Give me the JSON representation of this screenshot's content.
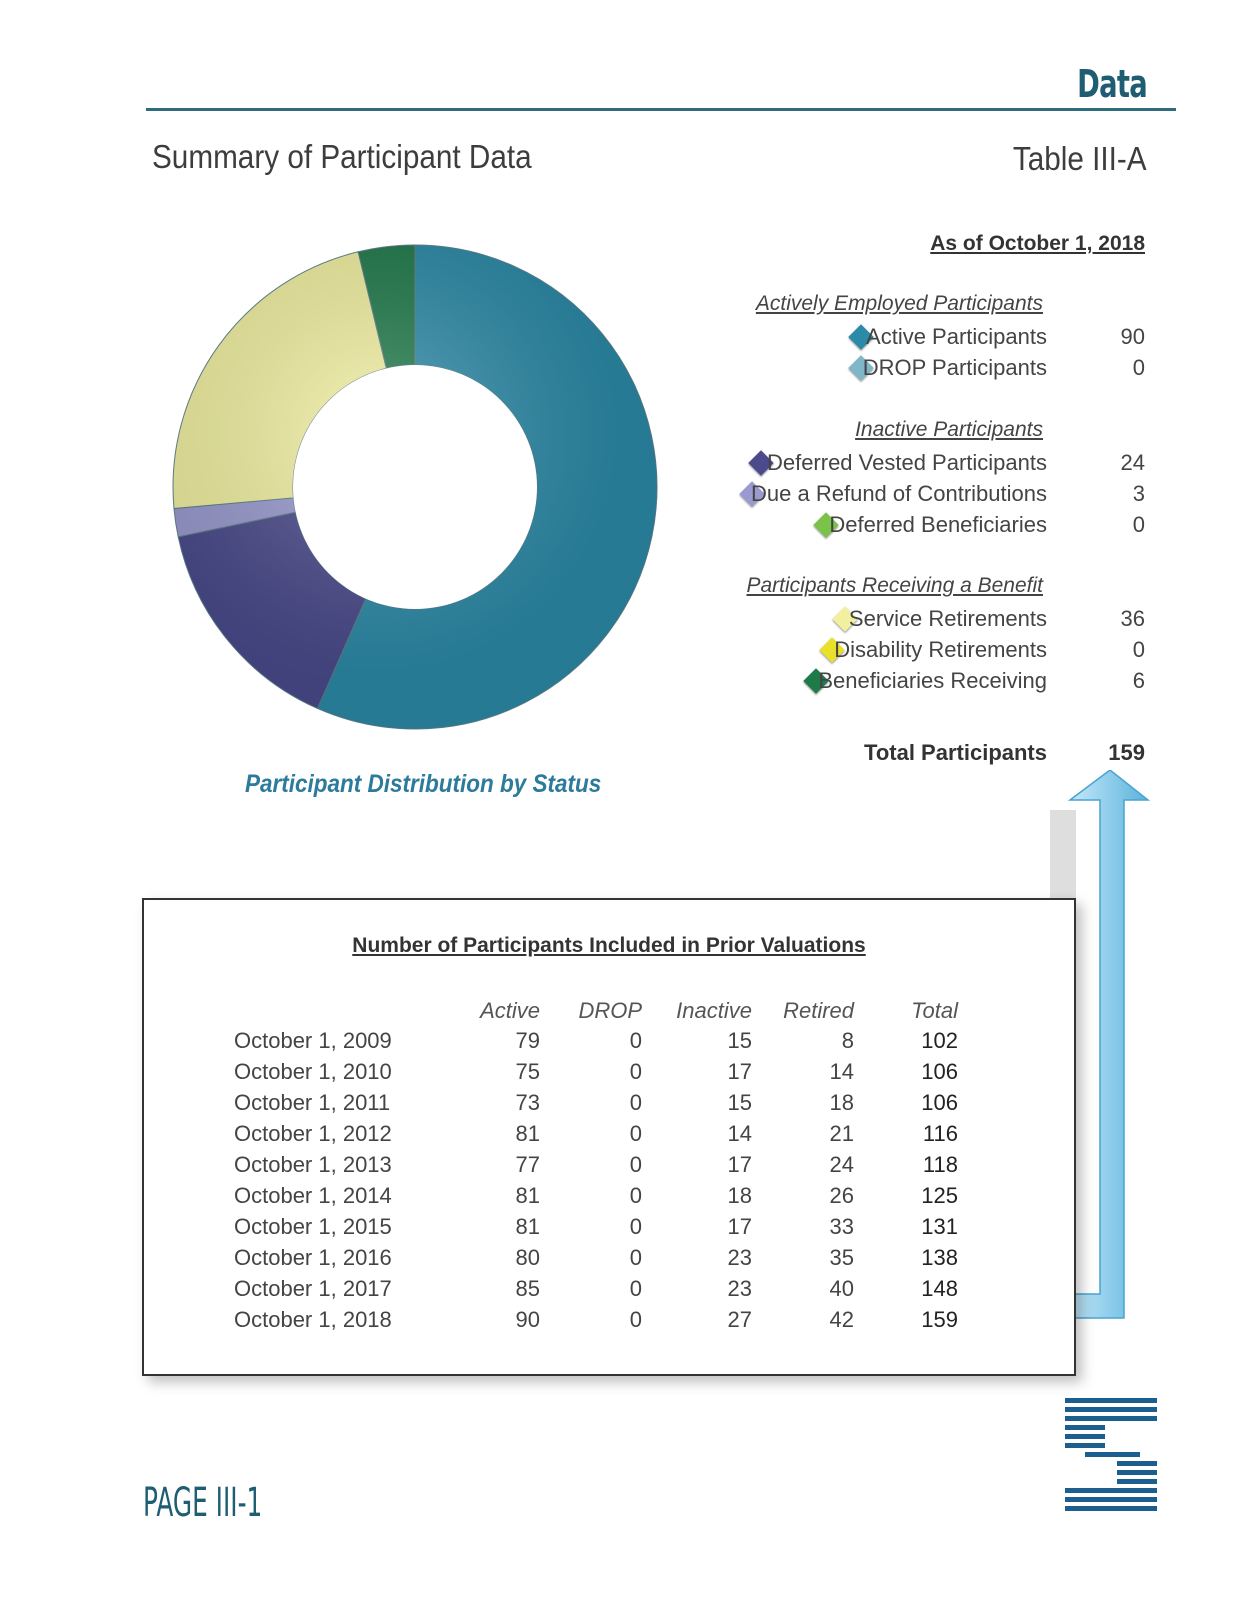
{
  "header": {
    "section": "Data",
    "title": "Summary of Participant Data",
    "table_id": "Table III-A"
  },
  "summary": {
    "as_of": "As of October 1, 2018",
    "groups": [
      {
        "heading": "Actively Employed Participants",
        "items": [
          {
            "label": "Active Participants",
            "value": "90",
            "color": "#2b8aa8"
          },
          {
            "label": "DROP Participants",
            "value": "0",
            "color": "#7fb7c9"
          }
        ]
      },
      {
        "heading": "Inactive Participants",
        "items": [
          {
            "label": "Deferred Vested Participants",
            "value": "24",
            "color": "#4a4a8c"
          },
          {
            "label": "Due a Refund of Contributions",
            "value": "3",
            "color": "#9a9ad0"
          },
          {
            "label": "Deferred Beneficiaries",
            "value": "0",
            "color": "#7ac24a"
          }
        ]
      },
      {
        "heading": "Participants Receiving a Benefit",
        "items": [
          {
            "label": "Service Retirements",
            "value": "36",
            "color": "#f1f0a0"
          },
          {
            "label": "Disability Retirements",
            "value": "0",
            "color": "#e8e02a"
          },
          {
            "label": "Beneficiaries Receiving",
            "value": "6",
            "color": "#1f7a4a"
          }
        ]
      }
    ],
    "total_label": "Total Participants",
    "total_value": "159"
  },
  "chart_data": {
    "type": "pie",
    "title": "Participant Distribution by Status",
    "donut": true,
    "slices": [
      {
        "name": "Active Participants",
        "value": 90,
        "color": "#2b8aa8"
      },
      {
        "name": "DROP Participants",
        "value": 0,
        "color": "#7fb7c9"
      },
      {
        "name": "Deferred Vested Participants",
        "value": 24,
        "color": "#4a4a8c"
      },
      {
        "name": "Due a Refund of Contributions",
        "value": 3,
        "color": "#9a9ad0"
      },
      {
        "name": "Deferred Beneficiaries",
        "value": 0,
        "color": "#7ac24a"
      },
      {
        "name": "Service Retirements",
        "value": 36,
        "color": "#f1f0a0"
      },
      {
        "name": "Disability Retirements",
        "value": 0,
        "color": "#e8e02a"
      },
      {
        "name": "Beneficiaries Receiving",
        "value": 6,
        "color": "#1f7a4a"
      }
    ]
  },
  "prior": {
    "title": "Number of Participants Included in Prior Valuations",
    "columns": [
      "Active",
      "DROP",
      "Inactive",
      "Retired",
      "Total"
    ],
    "rows": [
      {
        "date": "October 1, 2009",
        "active": "79",
        "drop": "0",
        "inactive": "15",
        "retired": "8",
        "total": "102"
      },
      {
        "date": "October 1, 2010",
        "active": "75",
        "drop": "0",
        "inactive": "17",
        "retired": "14",
        "total": "106"
      },
      {
        "date": "October 1, 2011",
        "active": "73",
        "drop": "0",
        "inactive": "15",
        "retired": "18",
        "total": "106"
      },
      {
        "date": "October 1, 2012",
        "active": "81",
        "drop": "0",
        "inactive": "14",
        "retired": "21",
        "total": "116"
      },
      {
        "date": "October 1, 2013",
        "active": "77",
        "drop": "0",
        "inactive": "17",
        "retired": "24",
        "total": "118"
      },
      {
        "date": "October 1, 2014",
        "active": "81",
        "drop": "0",
        "inactive": "18",
        "retired": "26",
        "total": "125"
      },
      {
        "date": "October 1, 2015",
        "active": "81",
        "drop": "0",
        "inactive": "17",
        "retired": "33",
        "total": "131"
      },
      {
        "date": "October 1, 2016",
        "active": "80",
        "drop": "0",
        "inactive": "23",
        "retired": "35",
        "total": "138"
      },
      {
        "date": "October 1, 2017",
        "active": "85",
        "drop": "0",
        "inactive": "23",
        "retired": "40",
        "total": "148"
      },
      {
        "date": "October 1, 2018",
        "active": "90",
        "drop": "0",
        "inactive": "27",
        "retired": "42",
        "total": "159"
      }
    ]
  },
  "footer": {
    "page": "PAGE III-1"
  }
}
